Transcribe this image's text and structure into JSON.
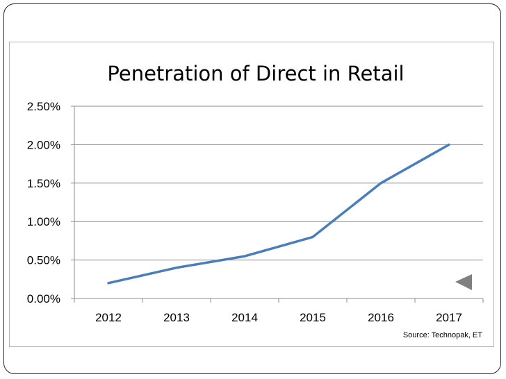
{
  "chart_data": {
    "type": "line",
    "title": "Penetration of Direct in Retail",
    "xlabel": "",
    "ylabel": "",
    "categories": [
      "2012",
      "2013",
      "2014",
      "2015",
      "2016",
      "2017"
    ],
    "series": [
      {
        "name": "Penetration of Direct in Retail",
        "values": [
          0.2,
          0.4,
          0.55,
          0.8,
          1.5,
          2.0
        ]
      }
    ],
    "ylim": [
      0,
      2.5
    ],
    "yticks": [
      0,
      0.5,
      1.0,
      1.5,
      2.0,
      2.5
    ],
    "ytick_labels": [
      "0.00%",
      "0.50%",
      "1.00%",
      "1.50%",
      "2.00%",
      "2.50%"
    ],
    "grid": true,
    "legend": "none",
    "line_color": "#4a7ebb"
  },
  "source_note": "Source: Technopak, ET",
  "nav": {
    "back_icon": "triangle-left-icon",
    "color": "#808080"
  }
}
